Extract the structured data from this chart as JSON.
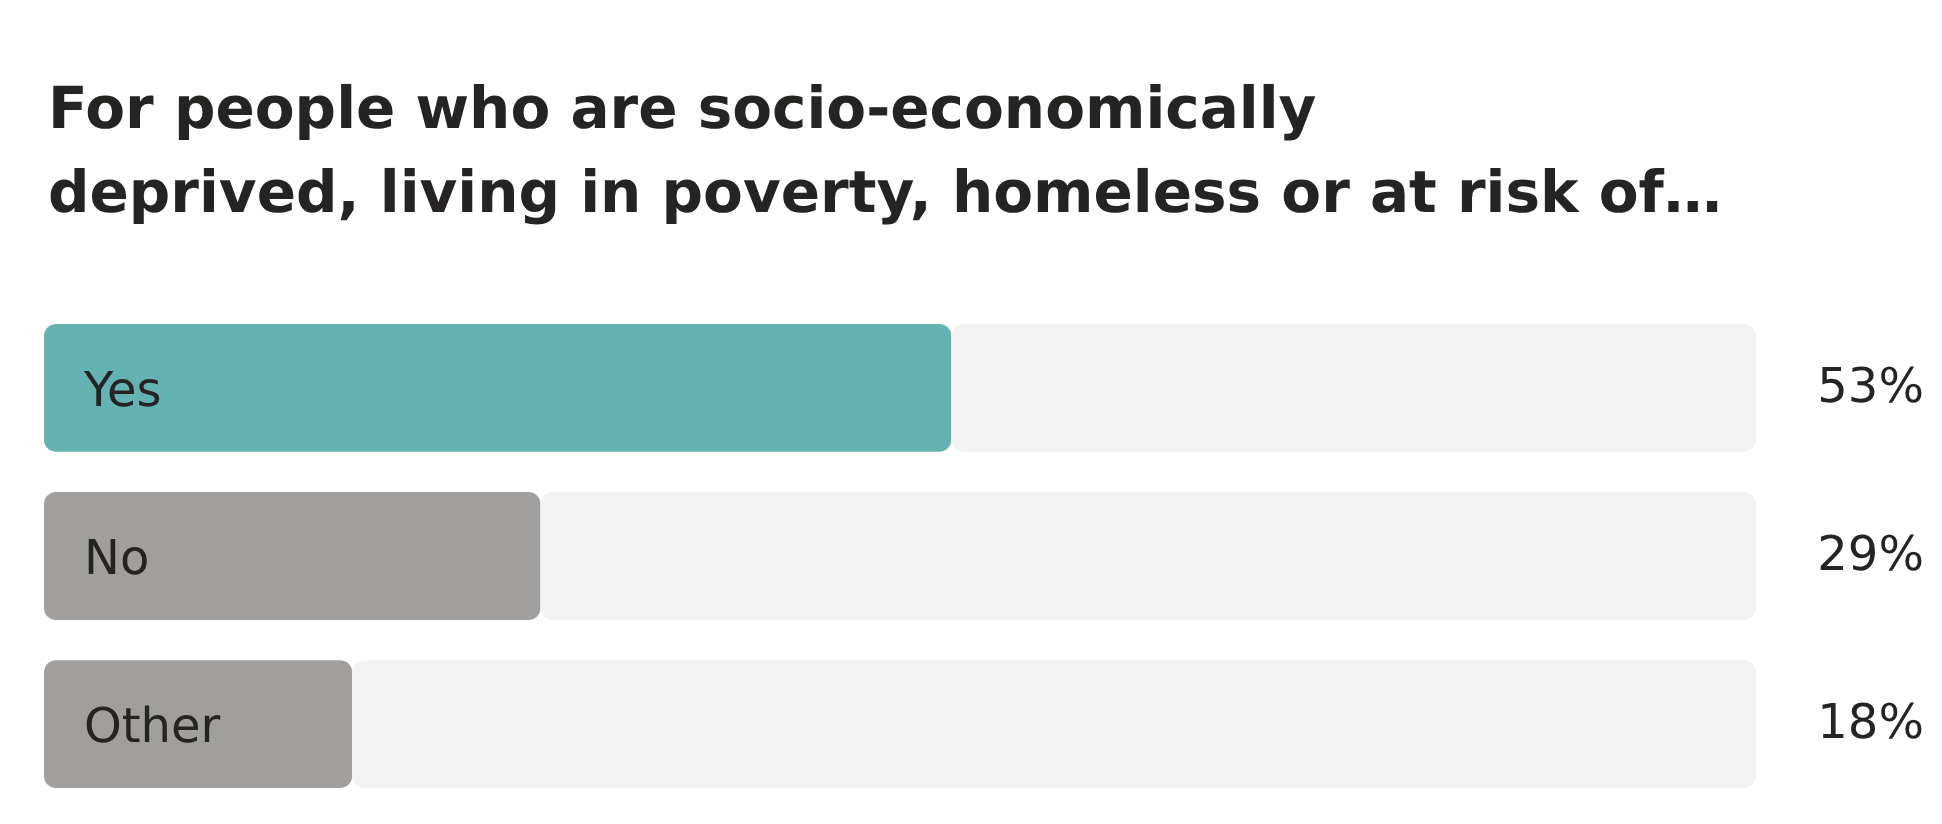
{
  "chart_data": {
    "type": "bar",
    "orientation": "horizontal",
    "stacked": true,
    "title": "For people who are socio-economically\ndeprived, living in poverty, homeless or at risk of…",
    "categories": [
      "Yes",
      "No",
      "Other"
    ],
    "series": [
      {
        "colors": [
          "#65b2b3",
          "#a09f9d",
          "#a09f9d"
        ],
        "values": [
          53,
          29,
          18
        ],
        "value_labels": [
          "53%",
          "29%",
          "18%"
        ]
      },
      {
        "color": "#f3f3f3",
        "values": [
          47,
          71,
          82
        ]
      }
    ],
    "xlim": [
      0,
      100
    ]
  }
}
